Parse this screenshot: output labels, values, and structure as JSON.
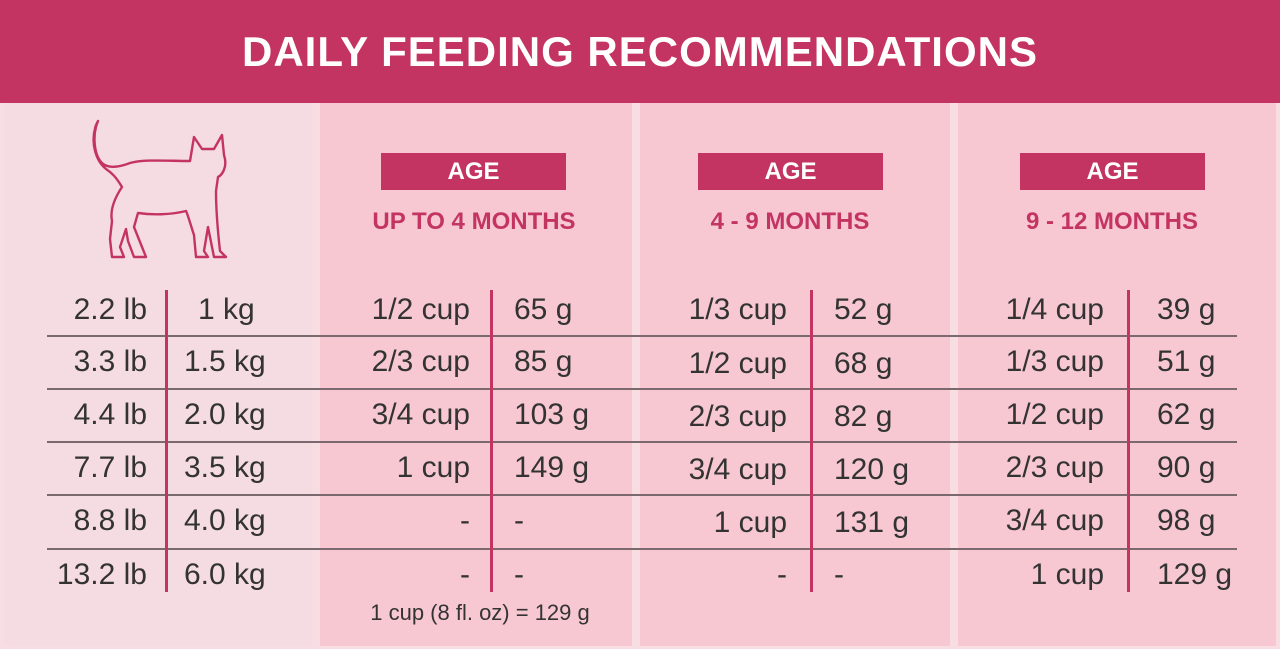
{
  "title": "DAILY FEEDING RECOMMENDATIONS",
  "icons": {
    "cat": "cat-outline-icon"
  },
  "colors": {
    "accent": "#c43462",
    "panel": "#f7c8d2",
    "first_panel": "#f5dce2"
  },
  "age_label": "AGE",
  "columns": [
    {
      "age_label": "AGE",
      "range": "UP TO 4 MONTHS"
    },
    {
      "age_label": "AGE",
      "range": "4 - 9 MONTHS"
    },
    {
      "age_label": "AGE",
      "range": "9 - 12 MONTHS"
    }
  ],
  "rows": [
    {
      "lb": "2.2 lb",
      "kg": "1 kg",
      "a_cup": "1/2 cup",
      "a_g": "65 g",
      "b_cup": "1/3 cup",
      "b_g": "52 g",
      "c_cup": "1/4 cup",
      "c_g": "39 g"
    },
    {
      "lb": "3.3 lb",
      "kg": "1.5 kg",
      "a_cup": "2/3 cup",
      "a_g": "85 g",
      "b_cup": "1/2 cup",
      "b_g": "68 g",
      "c_cup": "1/3 cup",
      "c_g": "51 g"
    },
    {
      "lb": "4.4 lb",
      "kg": "2.0 kg",
      "a_cup": "3/4 cup",
      "a_g": "103 g",
      "b_cup": "2/3 cup",
      "b_g": "82 g",
      "c_cup": "1/2 cup",
      "c_g": "62 g"
    },
    {
      "lb": "7.7 lb",
      "kg": "3.5 kg",
      "a_cup": "1 cup",
      "a_g": "149 g",
      "b_cup": "3/4 cup",
      "b_g": "120 g",
      "c_cup": "2/3 cup",
      "c_g": "90 g"
    },
    {
      "lb": "8.8 lb",
      "kg": "4.0 kg",
      "a_cup": "-",
      "a_g": "-",
      "b_cup": "1 cup",
      "b_g": "131 g",
      "c_cup": "3/4 cup",
      "c_g": "98 g"
    },
    {
      "lb": "13.2 lb",
      "kg": "6.0 kg",
      "a_cup": "-",
      "a_g": "-",
      "b_cup": "-",
      "b_g": "-",
      "c_cup": "1 cup",
      "c_g": "129 g"
    }
  ],
  "footnote": "1 cup (8 fl. oz) = 129 g"
}
